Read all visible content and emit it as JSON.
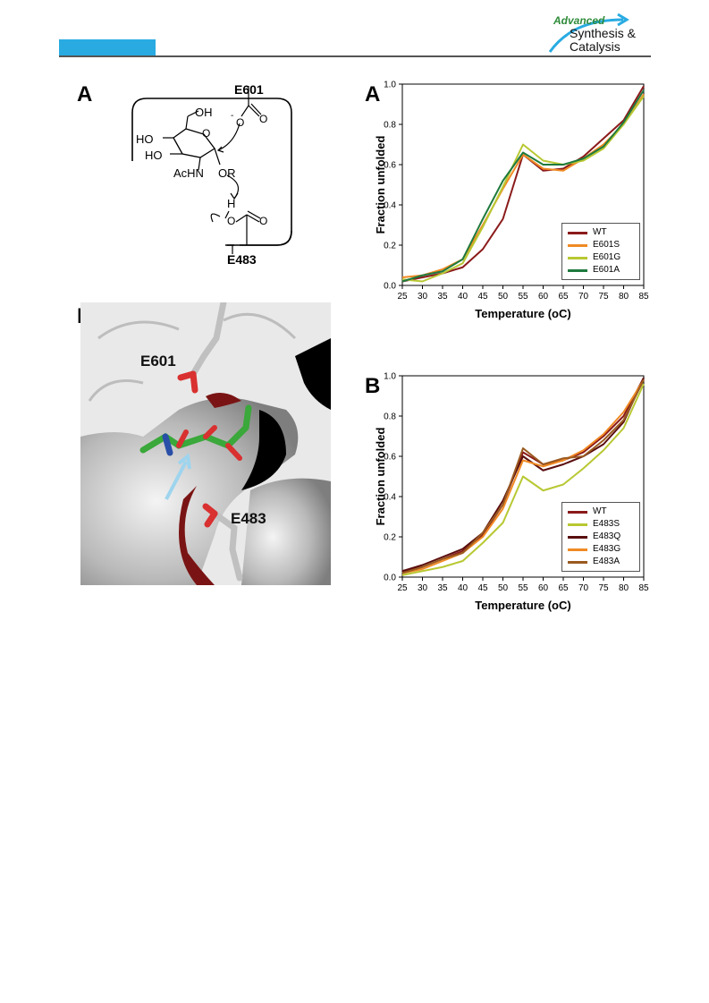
{
  "journal": {
    "brand_word": "Advanced",
    "title_line1": "Synthesis &",
    "title_line2": "Catalysis",
    "accent_color": "#29abe2"
  },
  "figure_left": {
    "panel_a": "A",
    "panel_b": "B",
    "scheme": {
      "label_top": "E601",
      "label_bottom": "E483",
      "oh": "OH",
      "ho1": "HO",
      "ho2": "HO",
      "o_ring": "O",
      "achn": "AcHN",
      "or": "OR",
      "h": "H",
      "o_up": "O",
      "o_neg": "-",
      "o_low": "O",
      "o_low2": "O",
      "o_top2": "O"
    },
    "structure": {
      "label_e601": "E601",
      "label_e483": "E483"
    }
  },
  "figure_right": {
    "panel_a": "A",
    "panel_b": "B"
  },
  "chart_data": [
    {
      "type": "line",
      "panel": "A",
      "title": "",
      "xlabel": "Temperature (oC)",
      "ylabel": "Fraction unfolded",
      "xlim": [
        25,
        85
      ],
      "ylim": [
        0.0,
        1.0
      ],
      "xticks": [
        25,
        30,
        35,
        40,
        45,
        50,
        55,
        60,
        65,
        70,
        75,
        80,
        85
      ],
      "yticks": [
        0.0,
        0.2,
        0.4,
        0.6,
        0.8,
        1.0
      ],
      "x": [
        25,
        30,
        35,
        40,
        45,
        50,
        55,
        60,
        65,
        70,
        75,
        80,
        85
      ],
      "legend_position": "bottom-right",
      "series": [
        {
          "name": "WT",
          "color": "#8b1a1a",
          "values": [
            0.02,
            0.04,
            0.06,
            0.09,
            0.18,
            0.33,
            0.65,
            0.57,
            0.58,
            0.64,
            0.73,
            0.82,
            0.99
          ]
        },
        {
          "name": "E601S",
          "color": "#f08a24",
          "values": [
            0.04,
            0.05,
            0.08,
            0.13,
            0.3,
            0.48,
            0.65,
            0.58,
            0.57,
            0.63,
            0.7,
            0.8,
            0.95
          ]
        },
        {
          "name": "E601G",
          "color": "#b8c832",
          "values": [
            0.03,
            0.02,
            0.06,
            0.11,
            0.29,
            0.49,
            0.7,
            0.62,
            0.6,
            0.62,
            0.68,
            0.8,
            0.94
          ]
        },
        {
          "name": "E601A",
          "color": "#1f7a3e",
          "values": [
            0.02,
            0.05,
            0.07,
            0.13,
            0.33,
            0.52,
            0.66,
            0.6,
            0.6,
            0.63,
            0.69,
            0.81,
            0.97
          ]
        }
      ]
    },
    {
      "type": "line",
      "panel": "B",
      "title": "",
      "xlabel": "Temperature (oC)",
      "ylabel": "Fraction unfolded",
      "xlim": [
        25,
        85
      ],
      "ylim": [
        0.0,
        1.0
      ],
      "xticks": [
        25,
        30,
        35,
        40,
        45,
        50,
        55,
        60,
        65,
        70,
        75,
        80,
        85
      ],
      "yticks": [
        0.0,
        0.2,
        0.4,
        0.6,
        0.8,
        1.0
      ],
      "x": [
        25,
        30,
        35,
        40,
        45,
        50,
        55,
        60,
        65,
        70,
        75,
        80,
        85
      ],
      "legend_position": "bottom-right",
      "series": [
        {
          "name": "WT",
          "color": "#8b1a1a",
          "values": [
            0.03,
            0.05,
            0.09,
            0.13,
            0.21,
            0.36,
            0.62,
            0.56,
            0.58,
            0.62,
            0.7,
            0.8,
            0.99
          ]
        },
        {
          "name": "E483S",
          "color": "#b8c832",
          "values": [
            0.01,
            0.03,
            0.05,
            0.08,
            0.17,
            0.27,
            0.5,
            0.43,
            0.46,
            0.54,
            0.63,
            0.74,
            0.96
          ]
        },
        {
          "name": "E483Q",
          "color": "#5a0e0e",
          "values": [
            0.03,
            0.06,
            0.1,
            0.14,
            0.22,
            0.38,
            0.6,
            0.53,
            0.56,
            0.6,
            0.66,
            0.77,
            0.99
          ]
        },
        {
          "name": "E483G",
          "color": "#f08a24",
          "values": [
            0.02,
            0.04,
            0.08,
            0.12,
            0.2,
            0.34,
            0.58,
            0.55,
            0.58,
            0.63,
            0.71,
            0.82,
            0.98
          ]
        },
        {
          "name": "E483A",
          "color": "#9a5a20",
          "values": [
            0.02,
            0.05,
            0.09,
            0.12,
            0.22,
            0.36,
            0.64,
            0.56,
            0.59,
            0.6,
            0.68,
            0.78,
            0.98
          ]
        }
      ]
    }
  ]
}
